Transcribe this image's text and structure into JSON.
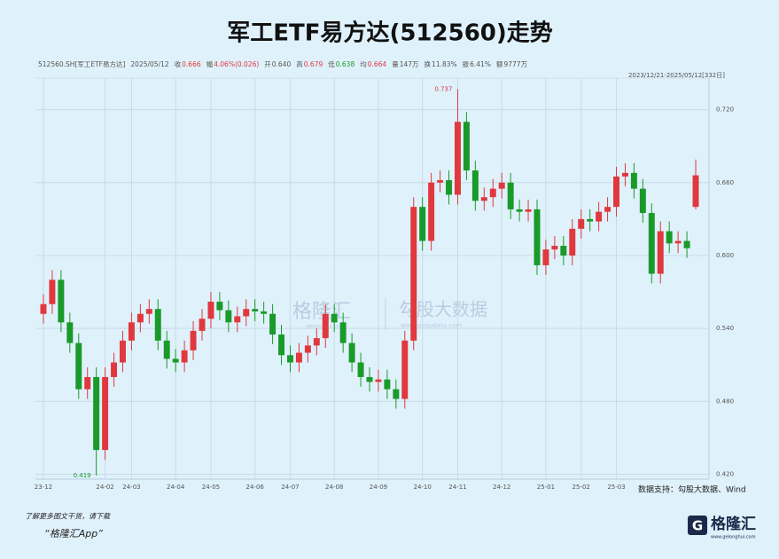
{
  "chart_data": {
    "type": "candlestick",
    "title": "军工ETF易方达(512560)走势",
    "info": [
      {
        "label": "512560.SH[军工ETF易方达]",
        "value": "2025/05/12",
        "color": "#555555"
      },
      {
        "label": "收",
        "value": "0.666",
        "color": "#e0383e"
      },
      {
        "label": "幅",
        "value": "4.06%(0.026)",
        "color": "#e0383e"
      },
      {
        "label": "开",
        "value": "0.640",
        "color": "#555555"
      },
      {
        "label": "高",
        "value": "0.679",
        "color": "#e0383e"
      },
      {
        "label": "低",
        "value": "0.638",
        "color": "#1a9a2a"
      },
      {
        "label": "均",
        "value": "0.664",
        "color": "#e0383e"
      },
      {
        "label": "量",
        "value": "147万",
        "color": "#555555"
      },
      {
        "label": "换",
        "value": "11.83%",
        "color": "#555555"
      },
      {
        "label": "振",
        "value": "6.41%",
        "color": "#555555"
      },
      {
        "label": "额",
        "value": "9777万",
        "color": "#555555"
      }
    ],
    "range_label": "2023/12/21-2025/05/12[332日]",
    "source": "数据支持：勾股大数据、Wind",
    "watermark": [
      "格隆汇",
      "gelonghui.com",
      "勾股大数据",
      "www.gogudata.com"
    ],
    "footer": {
      "line1": "了解更多图文干货，请下载",
      "line2": "“格隆汇App”",
      "logo": "格隆汇",
      "logo_url": "www.gelonghui.com"
    },
    "up_color": "#e0383e",
    "down_color": "#1a9a2a",
    "grid": true,
    "ylim": [
      0.416,
      0.746
    ],
    "yticks": [
      {
        "value": 0.42,
        "label": "0.420"
      },
      {
        "value": 0.48,
        "label": "0.480"
      },
      {
        "value": 0.54,
        "label": "0.540"
      },
      {
        "value": 0.6,
        "label": "0.600"
      },
      {
        "value": 0.66,
        "label": "0.660"
      },
      {
        "value": 0.72,
        "label": "0.720"
      }
    ],
    "categories": [
      "23-12",
      null,
      null,
      null,
      null,
      null,
      null,
      "24-02",
      null,
      null,
      "24-03",
      null,
      null,
      null,
      null,
      "24-04",
      null,
      null,
      null,
      "24-05",
      null,
      null,
      null,
      null,
      "24-06",
      null,
      null,
      null,
      "24-07",
      null,
      null,
      null,
      null,
      "24-08",
      null,
      null,
      null,
      null,
      "24-09",
      null,
      null,
      null,
      null,
      "24-10",
      null,
      null,
      null,
      "24-11",
      null,
      null,
      null,
      null,
      "24-12",
      null,
      null,
      null,
      null,
      "25-01",
      null,
      null,
      null,
      "25-02",
      null,
      null,
      null,
      "25-03",
      null,
      null,
      null,
      null,
      null,
      null,
      null,
      null,
      null
    ],
    "open": [
      0.552,
      0.56,
      0.58,
      0.545,
      0.528,
      0.49,
      0.5,
      0.44,
      0.5,
      0.512,
      0.53,
      0.545,
      0.552,
      0.556,
      0.53,
      0.515,
      0.512,
      0.522,
      0.538,
      0.548,
      0.562,
      0.555,
      0.545,
      0.55,
      0.556,
      0.554,
      0.552,
      0.535,
      0.518,
      0.512,
      0.52,
      0.526,
      0.532,
      0.552,
      0.545,
      0.528,
      0.512,
      0.5,
      0.496,
      0.498,
      0.49,
      0.482,
      0.53,
      0.64,
      0.612,
      0.66,
      0.662,
      0.65,
      0.71,
      0.67,
      0.645,
      0.648,
      0.655,
      0.66,
      0.638,
      0.636,
      0.638,
      0.592,
      0.605,
      0.608,
      0.6,
      0.622,
      0.63,
      0.628,
      0.636,
      0.64,
      0.665,
      0.668,
      0.655,
      0.635,
      0.585,
      0.62,
      0.61,
      0.612,
      0.64
    ],
    "high": [
      0.568,
      0.588,
      0.588,
      0.553,
      0.536,
      0.508,
      0.508,
      0.508,
      0.52,
      0.538,
      0.553,
      0.56,
      0.564,
      0.564,
      0.538,
      0.523,
      0.53,
      0.546,
      0.556,
      0.57,
      0.57,
      0.563,
      0.558,
      0.564,
      0.564,
      0.562,
      0.56,
      0.543,
      0.526,
      0.528,
      0.534,
      0.54,
      0.56,
      0.56,
      0.553,
      0.536,
      0.52,
      0.508,
      0.506,
      0.506,
      0.498,
      0.538,
      0.648,
      0.648,
      0.668,
      0.67,
      0.67,
      0.737,
      0.718,
      0.678,
      0.656,
      0.663,
      0.668,
      0.668,
      0.646,
      0.646,
      0.646,
      0.613,
      0.616,
      0.616,
      0.63,
      0.638,
      0.638,
      0.644,
      0.648,
      0.673,
      0.676,
      0.676,
      0.663,
      0.643,
      0.628,
      0.628,
      0.62,
      0.62,
      0.679
    ],
    "low": [
      0.544,
      0.552,
      0.537,
      0.52,
      0.482,
      0.482,
      0.419,
      0.432,
      0.492,
      0.504,
      0.522,
      0.537,
      0.544,
      0.522,
      0.507,
      0.504,
      0.504,
      0.514,
      0.53,
      0.54,
      0.547,
      0.537,
      0.537,
      0.542,
      0.546,
      0.544,
      0.527,
      0.51,
      0.504,
      0.504,
      0.512,
      0.518,
      0.524,
      0.537,
      0.52,
      0.504,
      0.492,
      0.488,
      0.488,
      0.482,
      0.474,
      0.474,
      0.522,
      0.604,
      0.604,
      0.652,
      0.642,
      0.642,
      0.662,
      0.637,
      0.637,
      0.64,
      0.647,
      0.63,
      0.628,
      0.628,
      0.584,
      0.584,
      0.597,
      0.592,
      0.592,
      0.614,
      0.62,
      0.62,
      0.628,
      0.632,
      0.657,
      0.647,
      0.627,
      0.577,
      0.577,
      0.602,
      0.602,
      0.598,
      0.638
    ],
    "close": [
      0.56,
      0.58,
      0.545,
      0.528,
      0.49,
      0.5,
      0.44,
      0.5,
      0.512,
      0.53,
      0.545,
      0.552,
      0.556,
      0.53,
      0.515,
      0.512,
      0.522,
      0.538,
      0.548,
      0.562,
      0.555,
      0.545,
      0.55,
      0.556,
      0.554,
      0.552,
      0.535,
      0.518,
      0.512,
      0.52,
      0.526,
      0.532,
      0.552,
      0.545,
      0.528,
      0.512,
      0.5,
      0.496,
      0.498,
      0.49,
      0.482,
      0.53,
      0.64,
      0.612,
      0.66,
      0.662,
      0.65,
      0.71,
      0.67,
      0.645,
      0.648,
      0.655,
      0.66,
      0.638,
      0.636,
      0.638,
      0.592,
      0.605,
      0.608,
      0.6,
      0.622,
      0.63,
      0.628,
      0.636,
      0.64,
      0.665,
      0.668,
      0.655,
      0.635,
      0.585,
      0.62,
      0.61,
      0.612,
      0.606,
      0.666
    ],
    "max_index": 47,
    "min_index": 6
  }
}
